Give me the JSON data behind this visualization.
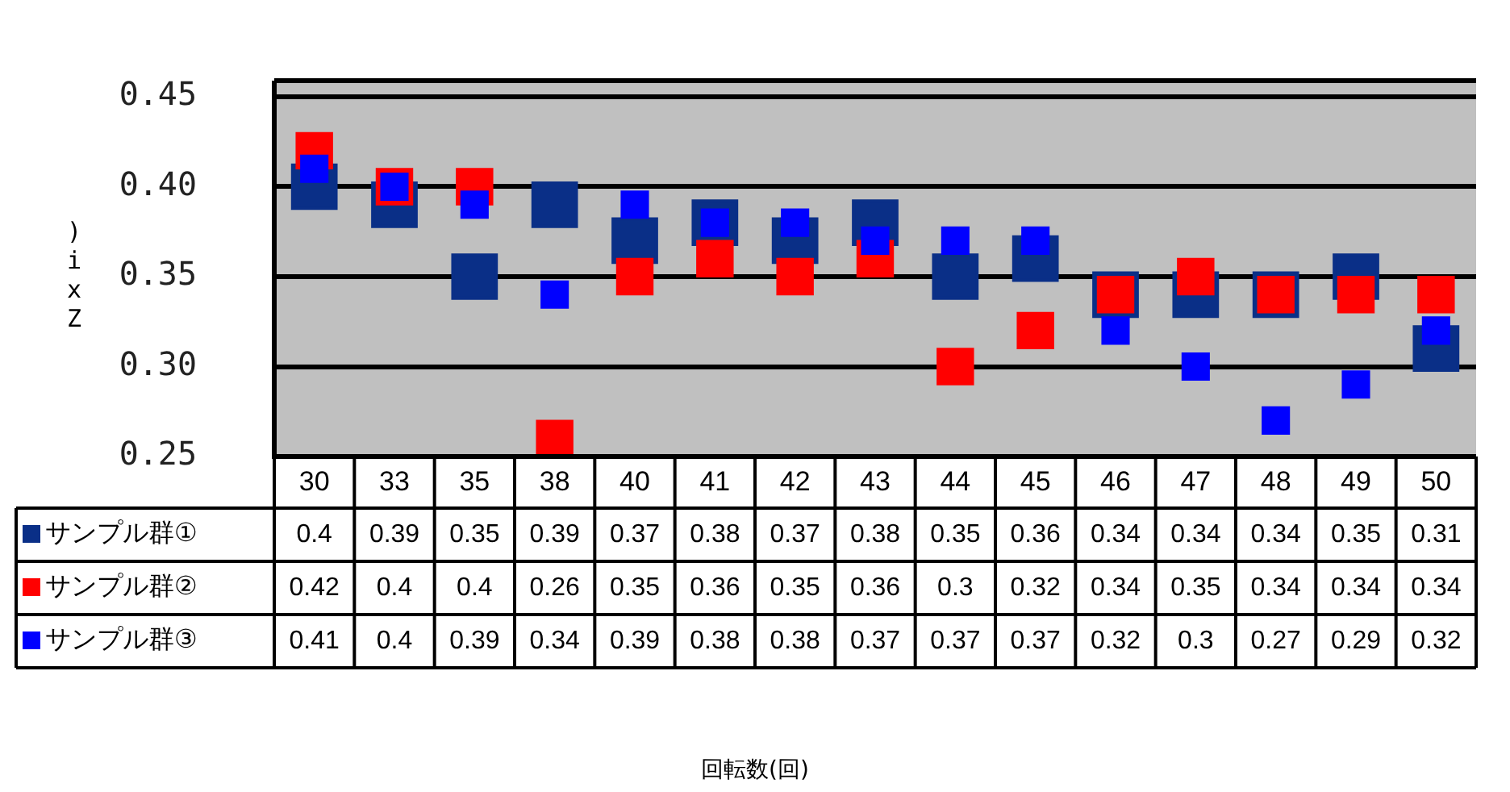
{
  "chart_data": {
    "type": "scatter",
    "ylabel": ")ixZ",
    "annotations": [
      "回転数(回)"
    ],
    "categories": [
      "30",
      "33",
      "35",
      "38",
      "40",
      "41",
      "42",
      "43",
      "44",
      "45",
      "46",
      "47",
      "48",
      "49",
      "50"
    ],
    "series": [
      {
        "name": "サンプル群①",
        "color": "#0a2f87",
        "values": [
          0.4,
          0.39,
          0.35,
          0.39,
          0.37,
          0.38,
          0.37,
          0.38,
          0.35,
          0.36,
          0.34,
          0.34,
          0.34,
          0.35,
          0.31
        ]
      },
      {
        "name": "サンプル群②",
        "color": "#ff0000",
        "values": [
          0.42,
          0.4,
          0.4,
          0.26,
          0.35,
          0.36,
          0.35,
          0.36,
          0.3,
          0.32,
          0.34,
          0.35,
          0.34,
          0.34,
          0.34
        ]
      },
      {
        "name": "サンプル群③",
        "color": "#0000ff",
        "values": [
          0.41,
          0.4,
          0.39,
          0.34,
          0.39,
          0.38,
          0.38,
          0.37,
          0.37,
          0.37,
          0.32,
          0.3,
          0.27,
          0.29,
          0.32
        ]
      }
    ],
    "ylim": [
      0.25,
      0.45
    ],
    "yticks": [
      {
        "value": 0.25,
        "label": "0.25"
      },
      {
        "value": 0.3,
        "label": "0.30"
      },
      {
        "value": 0.35,
        "label": "0.35"
      },
      {
        "value": 0.4,
        "label": "0.40"
      },
      {
        "value": 0.45,
        "label": "0.45"
      }
    ],
    "grid": "y",
    "marker": "square",
    "legend": "bottom",
    "data_labels": true
  }
}
